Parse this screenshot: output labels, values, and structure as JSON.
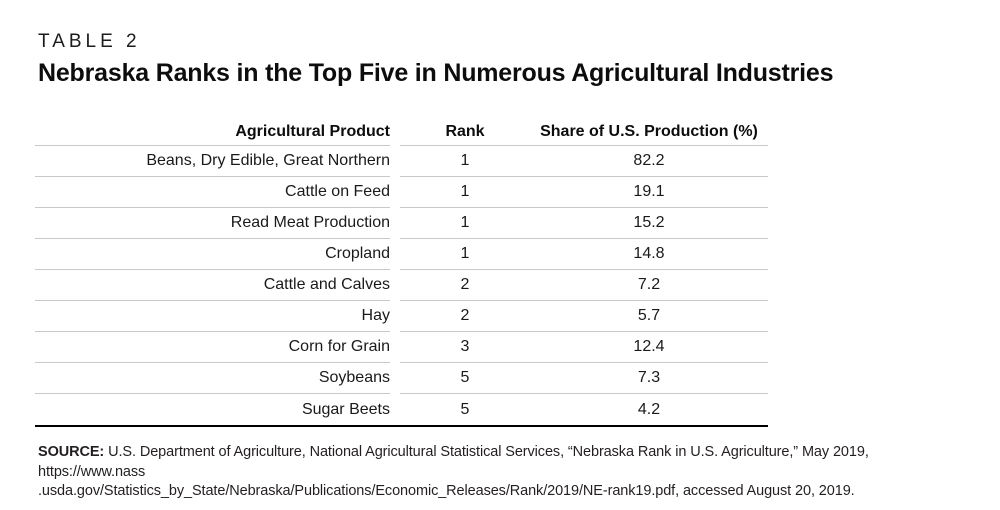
{
  "page": {
    "kicker": "TABLE 2",
    "title": "Nebraska Ranks in the Top Five in Numerous Agricultural Industries"
  },
  "table": {
    "columns": [
      "Agricultural Product",
      "Rank",
      "Share of U.S. Production (%)"
    ],
    "rows": [
      {
        "product": "Beans, Dry Edible, Great Northern",
        "rank": "1",
        "share": "82.2"
      },
      {
        "product": "Cattle on Feed",
        "rank": "1",
        "share": "19.1"
      },
      {
        "product": "Read Meat Production",
        "rank": "1",
        "share": "15.2"
      },
      {
        "product": "Cropland",
        "rank": "1",
        "share": "14.8"
      },
      {
        "product": "Cattle and Calves",
        "rank": "2",
        "share": "7.2"
      },
      {
        "product": "Hay",
        "rank": "2",
        "share": "5.7"
      },
      {
        "product": "Corn for Grain",
        "rank": "3",
        "share": "12.4"
      },
      {
        "product": "Soybeans",
        "rank": "5",
        "share": "7.3"
      },
      {
        "product": "Sugar Beets",
        "rank": "5",
        "share": "4.2"
      }
    ]
  },
  "source": {
    "label": "SOURCE:",
    "line1": " U.S. Department of Agriculture, National Agricultural Statistical Services, “Nebraska Rank in U.S. Agriculture,” May 2019, https://www.nass",
    "line2": ".usda.gov/Statistics_by_State/Nebraska/Publications/Economic_Releases/Rank/2019/NE-rank19.pdf, accessed August 20, 2019."
  }
}
